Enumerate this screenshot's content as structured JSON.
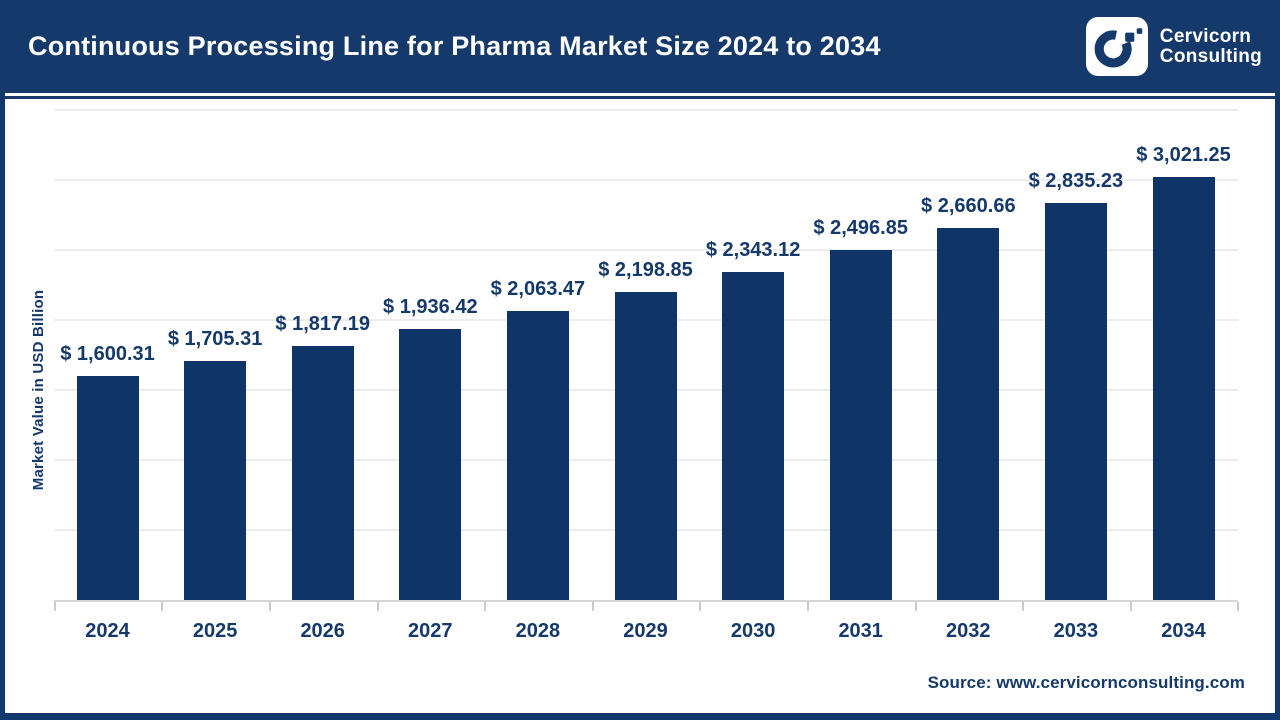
{
  "header": {
    "title": "Continuous Processing Line for Pharma Market Size 2024 to 2034",
    "brand_line1": "Cervicorn",
    "brand_line2": "Consulting"
  },
  "chart_data": {
    "type": "bar",
    "title": "Continuous Processing Line for Pharma Market Size 2024 to 2034",
    "categories": [
      "2024",
      "2025",
      "2026",
      "2027",
      "2028",
      "2029",
      "2030",
      "2031",
      "2032",
      "2033",
      "2034"
    ],
    "values": [
      1600.31,
      1705.31,
      1817.19,
      1936.42,
      2063.47,
      2198.85,
      2343.12,
      2496.85,
      2660.66,
      2835.23,
      3021.25
    ],
    "value_labels": [
      "$ 1,600.31",
      "$ 1,705.31",
      "$ 1,817.19",
      "$ 1,936.42",
      "$ 2,063.47",
      "$ 2,198.85",
      "$ 2,343.12",
      "$ 2,496.85",
      "$ 2,660.66",
      "$ 2,835.23",
      "$ 3,021.25"
    ],
    "xlabel": "",
    "ylabel": "Market Value in USD Billion",
    "ylim": [
      0,
      3500
    ],
    "grid_interval": 500,
    "grid": true,
    "legend_position": "none"
  },
  "footer": {
    "source": "Source: www.cervicornconsulting.com"
  },
  "colors": {
    "header_navy": "#15396b",
    "bar_navy": "#0e3468",
    "text_navy": "#16396b",
    "gridline": "#ebecee",
    "background": "#ffffff"
  }
}
